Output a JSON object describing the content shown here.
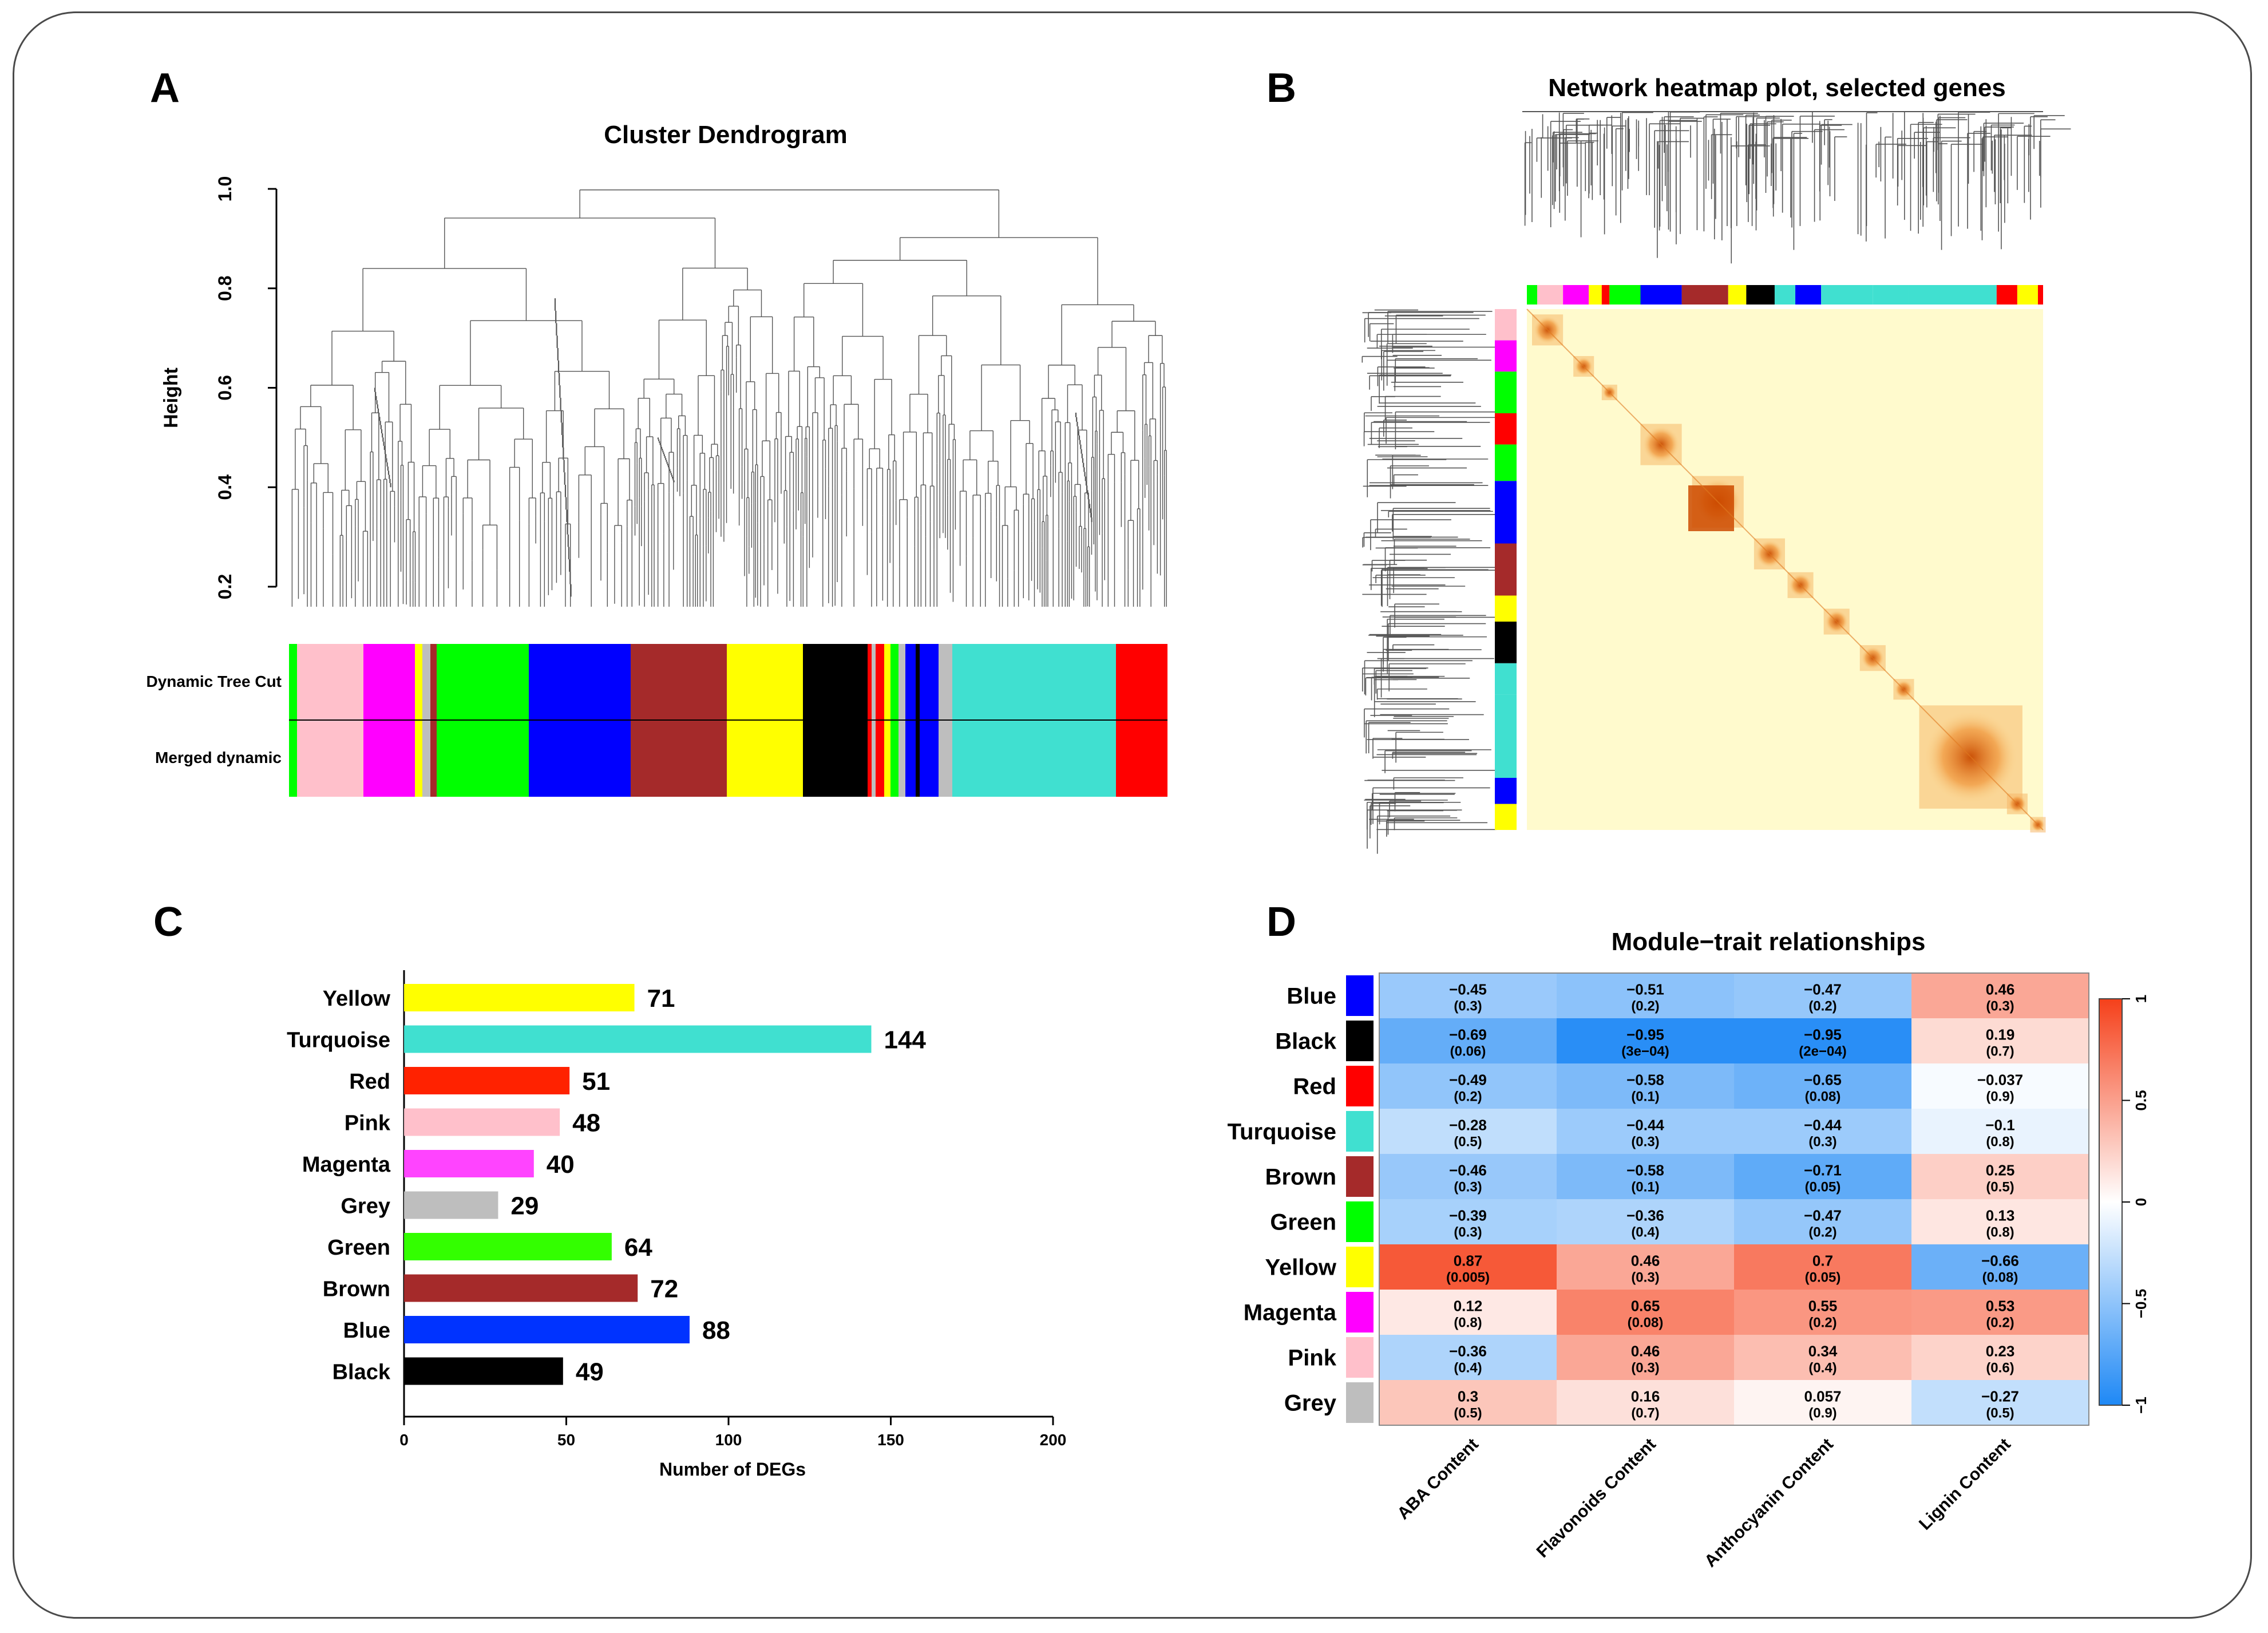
{
  "panels": {
    "A": {
      "letter": "A",
      "title": "Cluster Dendrogram",
      "ylabel": "Height",
      "yticks": [
        "0.2",
        "0.4",
        "0.6",
        "0.8",
        "1.0"
      ],
      "row_labels": [
        "Dynamic Tree Cut",
        "Merged dynamic"
      ]
    },
    "B": {
      "letter": "B",
      "title": "Network heatmap plot, selected genes"
    },
    "C": {
      "letter": "C"
    },
    "D": {
      "letter": "D",
      "title": "Module−trait relationships"
    }
  },
  "colors": {
    "module_blue": "#0000FF",
    "module_black": "#000000",
    "module_red": "#FF0000",
    "module_turquoise": "#40E0D0",
    "module_brown": "#A52A2A",
    "module_green": "#00FF00",
    "module_yellow": "#FFFF00",
    "module_magenta": "#FF00FF",
    "module_pink": "#FFC0CB",
    "module_grey": "#BEBEBE",
    "heatmap_bg": "#FFFACD",
    "heatmap_hot": "#CC4A00"
  },
  "chart_data": [
    {
      "panel": "A",
      "type": "dendrogram",
      "title": "Cluster Dendrogram",
      "ylabel": "Height",
      "ylim": [
        0.15,
        1.0
      ],
      "module_bar_order": [
        "pink",
        "magenta",
        "green",
        "blue",
        "brown",
        "yellow",
        "black",
        "turquoise",
        "red"
      ]
    },
    {
      "panel": "B",
      "type": "heatmap",
      "title": "Network heatmap plot, selected genes"
    },
    {
      "panel": "C",
      "type": "bar",
      "orientation": "horizontal",
      "categories": [
        "Yellow",
        "Turquoise",
        "Red",
        "Pink",
        "Magenta",
        "Grey",
        "Green",
        "Brown",
        "Blue",
        "Black"
      ],
      "values": [
        71,
        144,
        51,
        48,
        40,
        29,
        64,
        72,
        88,
        49
      ],
      "bar_colors": [
        "#FFFF00",
        "#40E0D0",
        "#FF2200",
        "#FFC0CB",
        "#FF44FF",
        "#BEBEBE",
        "#33FF00",
        "#A52A2A",
        "#0033FF",
        "#000000"
      ],
      "xlabel": "Number of DEGs",
      "xticks": [
        0,
        50,
        100,
        150,
        200
      ],
      "xlim": [
        0,
        200
      ]
    },
    {
      "panel": "D",
      "type": "heatmap",
      "title": "Module−trait relationships",
      "rows": [
        "Blue",
        "Black",
        "Red",
        "Turquoise",
        "Brown",
        "Green",
        "Yellow",
        "Magenta",
        "Pink",
        "Grey"
      ],
      "row_colors": [
        "#0000FF",
        "#000000",
        "#FF0000",
        "#40E0D0",
        "#A52A2A",
        "#00FF00",
        "#FFFF00",
        "#FF00FF",
        "#FFC0CB",
        "#BEBEBE"
      ],
      "columns": [
        "ABA Content",
        "Flavonoids Content",
        "Anthocyanin Content",
        "Lignin Content"
      ],
      "correlation": [
        [
          -0.45,
          -0.51,
          -0.47,
          0.46
        ],
        [
          -0.69,
          -0.95,
          -0.95,
          0.19
        ],
        [
          -0.49,
          -0.58,
          -0.65,
          -0.037
        ],
        [
          -0.28,
          -0.44,
          -0.44,
          -0.1
        ],
        [
          -0.46,
          -0.58,
          -0.71,
          0.25
        ],
        [
          -0.39,
          -0.36,
          -0.47,
          0.13
        ],
        [
          0.87,
          0.46,
          0.7,
          -0.66
        ],
        [
          0.12,
          0.65,
          0.55,
          0.53
        ],
        [
          -0.36,
          0.46,
          0.34,
          0.23
        ],
        [
          0.3,
          0.16,
          0.057,
          -0.27
        ]
      ],
      "corr_text": [
        [
          "−0.45",
          "−0.51",
          "−0.47",
          "0.46"
        ],
        [
          "−0.69",
          "−0.95",
          "−0.95",
          "0.19"
        ],
        [
          "−0.49",
          "−0.58",
          "−0.65",
          "−0.037"
        ],
        [
          "−0.28",
          "−0.44",
          "−0.44",
          "−0.1"
        ],
        [
          "−0.46",
          "−0.58",
          "−0.71",
          "0.25"
        ],
        [
          "−0.39",
          "−0.36",
          "−0.47",
          "0.13"
        ],
        [
          "0.87",
          "0.46",
          "0.7",
          "−0.66"
        ],
        [
          "0.12",
          "0.65",
          "0.55",
          "0.53"
        ],
        [
          "−0.36",
          "0.46",
          "0.34",
          "0.23"
        ],
        [
          "0.3",
          "0.16",
          "0.057",
          "−0.27"
        ]
      ],
      "pvalue_text": [
        [
          "(0.3)",
          "(0.2)",
          "(0.2)",
          "(0.3)"
        ],
        [
          "(0.06)",
          "(3e−04)",
          "(2e−04)",
          "(0.7)"
        ],
        [
          "(0.2)",
          "(0.1)",
          "(0.08)",
          "(0.9)"
        ],
        [
          "(0.5)",
          "(0.3)",
          "(0.3)",
          "(0.8)"
        ],
        [
          "(0.3)",
          "(0.1)",
          "(0.05)",
          "(0.5)"
        ],
        [
          "(0.3)",
          "(0.4)",
          "(0.2)",
          "(0.8)"
        ],
        [
          "(0.005)",
          "(0.3)",
          "(0.05)",
          "(0.08)"
        ],
        [
          "(0.8)",
          "(0.08)",
          "(0.2)",
          "(0.2)"
        ],
        [
          "(0.4)",
          "(0.3)",
          "(0.4)",
          "(0.6)"
        ],
        [
          "(0.5)",
          "(0.7)",
          "(0.9)",
          "(0.5)"
        ]
      ],
      "colorbar_ticks": [
        "1",
        "0.5",
        "0",
        "−0.5",
        "−1"
      ],
      "colorbar_range": [
        -1,
        1
      ]
    }
  ]
}
